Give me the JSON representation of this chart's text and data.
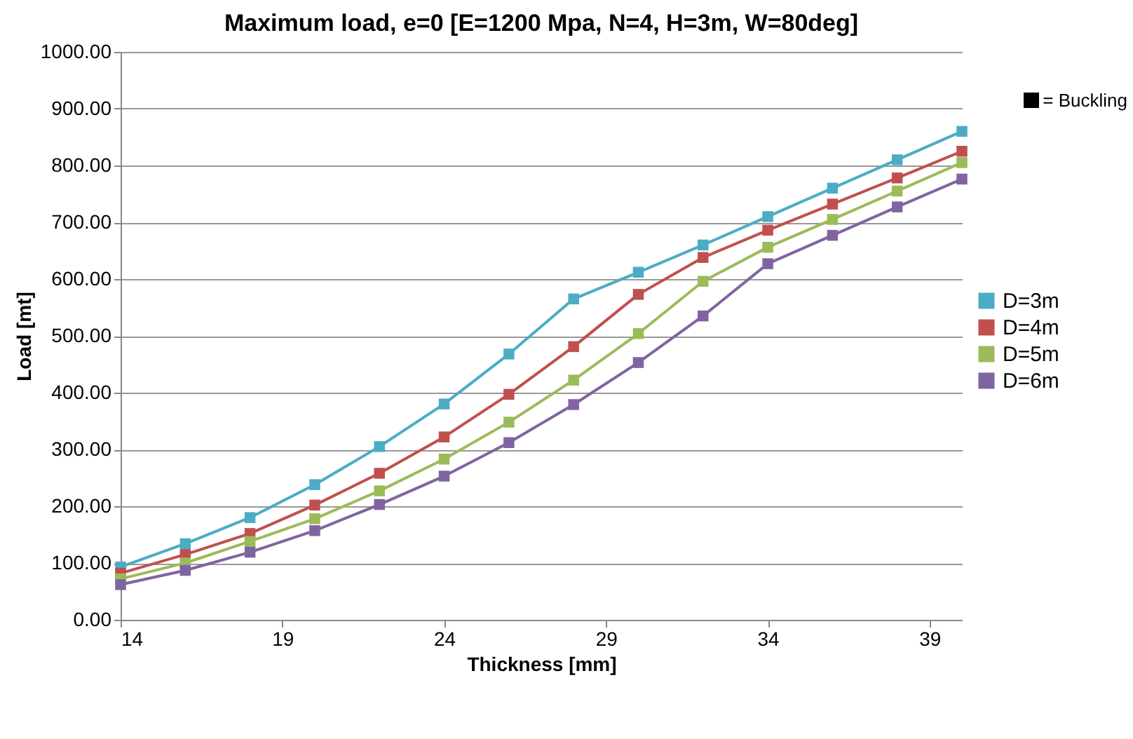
{
  "chart_data": {
    "type": "line",
    "title": "Maximum load, e=0 [E=1200 Mpa, N=4, H=3m, W=80deg]",
    "xlabel": "Thickness [mm]",
    "ylabel": "Load [mt]",
    "x": [
      14,
      16,
      18,
      20,
      22,
      24,
      26,
      28,
      30,
      32,
      34,
      36,
      38,
      40
    ],
    "series": [
      {
        "name": "D=3m",
        "color": "#4bacc6",
        "values": [
          93,
          134,
          180,
          238,
          305,
          380,
          468,
          565,
          612,
          660,
          710,
          760,
          810,
          860
        ]
      },
      {
        "name": "D=4m",
        "color": "#c0504d",
        "values": [
          82,
          115,
          152,
          202,
          258,
          322,
          397,
          481,
          573,
          638,
          686,
          732,
          778,
          825
        ]
      },
      {
        "name": "D=5m",
        "color": "#9bbb59",
        "values": [
          72,
          100,
          138,
          178,
          227,
          283,
          348,
          422,
          504,
          596,
          656,
          705,
          755,
          805
        ]
      },
      {
        "name": "D=6m",
        "color": "#8064a2",
        "values": [
          62,
          87,
          119,
          157,
          203,
          253,
          312,
          379,
          453,
          535,
          627,
          677,
          727,
          776
        ]
      }
    ],
    "xlim": [
      14,
      40
    ],
    "xticks": [
      14,
      19,
      24,
      29,
      34,
      39
    ],
    "ylim": [
      0,
      1000
    ],
    "yticks": [
      {
        "value": 0,
        "label": "0.00"
      },
      {
        "value": 100,
        "label": "100.00"
      },
      {
        "value": 200,
        "label": "200.00"
      },
      {
        "value": 300,
        "label": "300.00"
      },
      {
        "value": 400,
        "label": "400.00"
      },
      {
        "value": 500,
        "label": "500.00"
      },
      {
        "value": 600,
        "label": "600.00"
      },
      {
        "value": 700,
        "label": "700.00"
      },
      {
        "value": 800,
        "label": "800.00"
      },
      {
        "value": 900,
        "label": "900.00"
      },
      {
        "value": 1000,
        "label": "1000.00"
      }
    ],
    "grid": "y",
    "legend": "right",
    "marker": "square",
    "line_style": "solid",
    "annotations": [
      "= Buckling"
    ]
  }
}
